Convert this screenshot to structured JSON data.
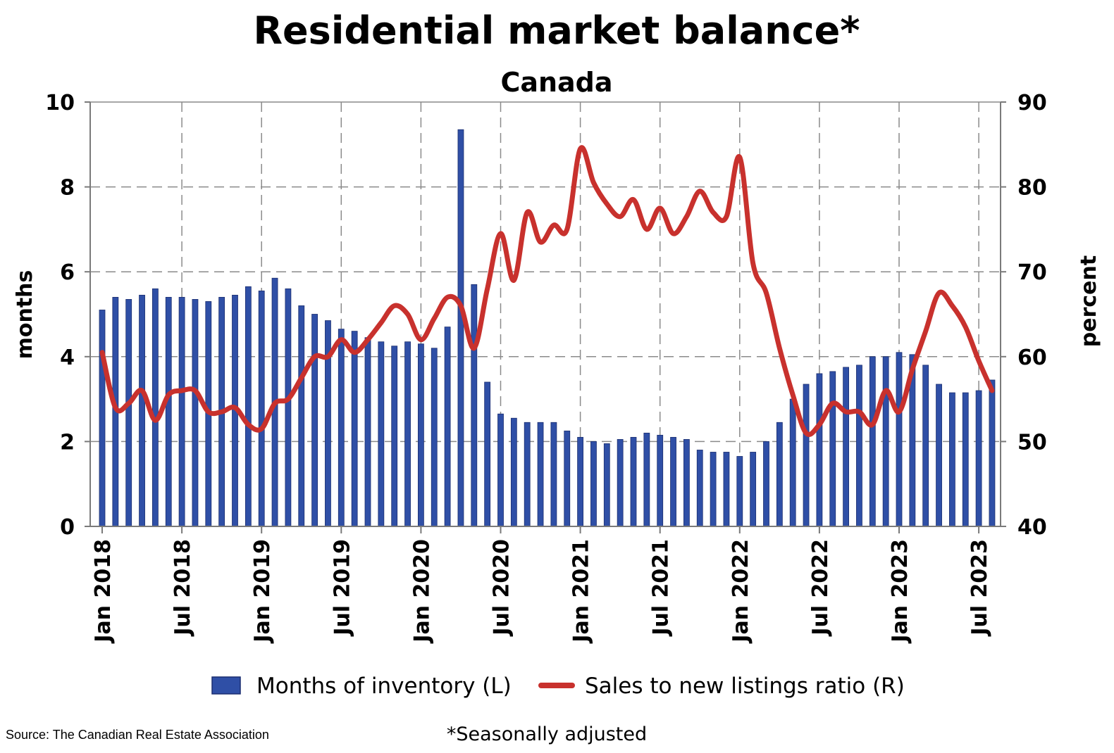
{
  "chart_data": {
    "type": "bar",
    "title": "Residential market balance*",
    "subtitle": "Canada",
    "ylabel_left": "months",
    "ylabel_right": "percent",
    "ylim_left": [
      0,
      10
    ],
    "ylim_right": [
      40,
      90
    ],
    "yticks_left": [
      "0",
      "2",
      "4",
      "6",
      "8",
      "10"
    ],
    "yticks_right": [
      "40",
      "50",
      "60",
      "70",
      "80",
      "90"
    ],
    "xtick_labels": [
      "Jan 2018",
      "Jul 2018",
      "Jan 2019",
      "Jul 2019",
      "Jan 2020",
      "Jul 2020",
      "Jan 2021",
      "Jul 2021",
      "Jan 2022",
      "Jul 2022",
      "Jan 2023",
      "Jul 2023"
    ],
    "grid": true,
    "legend_position": "bottom",
    "series": [
      {
        "name": "Months of inventory (L)",
        "type": "bar",
        "axis": "left",
        "color": "#2f4fa6",
        "values": [
          5.1,
          5.4,
          5.35,
          5.45,
          5.6,
          5.4,
          5.4,
          5.35,
          5.3,
          5.4,
          5.45,
          5.65,
          5.55,
          5.85,
          5.6,
          5.2,
          5.0,
          4.85,
          4.65,
          4.6,
          4.45,
          4.35,
          4.25,
          4.35,
          4.3,
          4.2,
          4.7,
          9.35,
          5.7,
          3.4,
          2.65,
          2.55,
          2.45,
          2.45,
          2.45,
          2.25,
          2.1,
          2.0,
          1.95,
          2.05,
          2.1,
          2.2,
          2.15,
          2.1,
          2.05,
          1.8,
          1.75,
          1.75,
          1.65,
          1.75,
          2.0,
          2.45,
          3.0,
          3.35,
          3.6,
          3.65,
          3.75,
          3.8,
          4.0,
          4.0,
          4.1,
          4.05,
          3.8,
          3.35,
          3.15,
          3.15,
          3.2,
          3.45
        ]
      },
      {
        "name": "Sales to new listings ratio (R)",
        "type": "line",
        "axis": "right",
        "color": "#c8312d",
        "values": [
          60.5,
          54,
          54.5,
          56,
          52.5,
          55.5,
          56,
          56,
          53.5,
          53.5,
          54,
          52,
          51.5,
          54.5,
          55,
          57.5,
          60,
          60,
          62,
          60.5,
          62,
          64,
          66,
          65,
          62,
          64.5,
          67,
          66,
          61,
          68,
          74.5,
          69,
          77,
          73.5,
          75.5,
          75,
          84.5,
          80.5,
          78,
          76.5,
          78.5,
          75,
          77.5,
          74.5,
          76.5,
          79.5,
          77,
          76.5,
          83.5,
          71,
          67.5,
          61,
          55.5,
          51,
          52,
          54.5,
          53.5,
          53.5,
          52,
          56,
          53.5,
          58.5,
          63,
          67.5,
          66,
          63.5,
          59.5,
          56
        ]
      }
    ],
    "footnote": "*Seasonally adjusted",
    "source": "Source: The Canadian Real Estate Association"
  }
}
